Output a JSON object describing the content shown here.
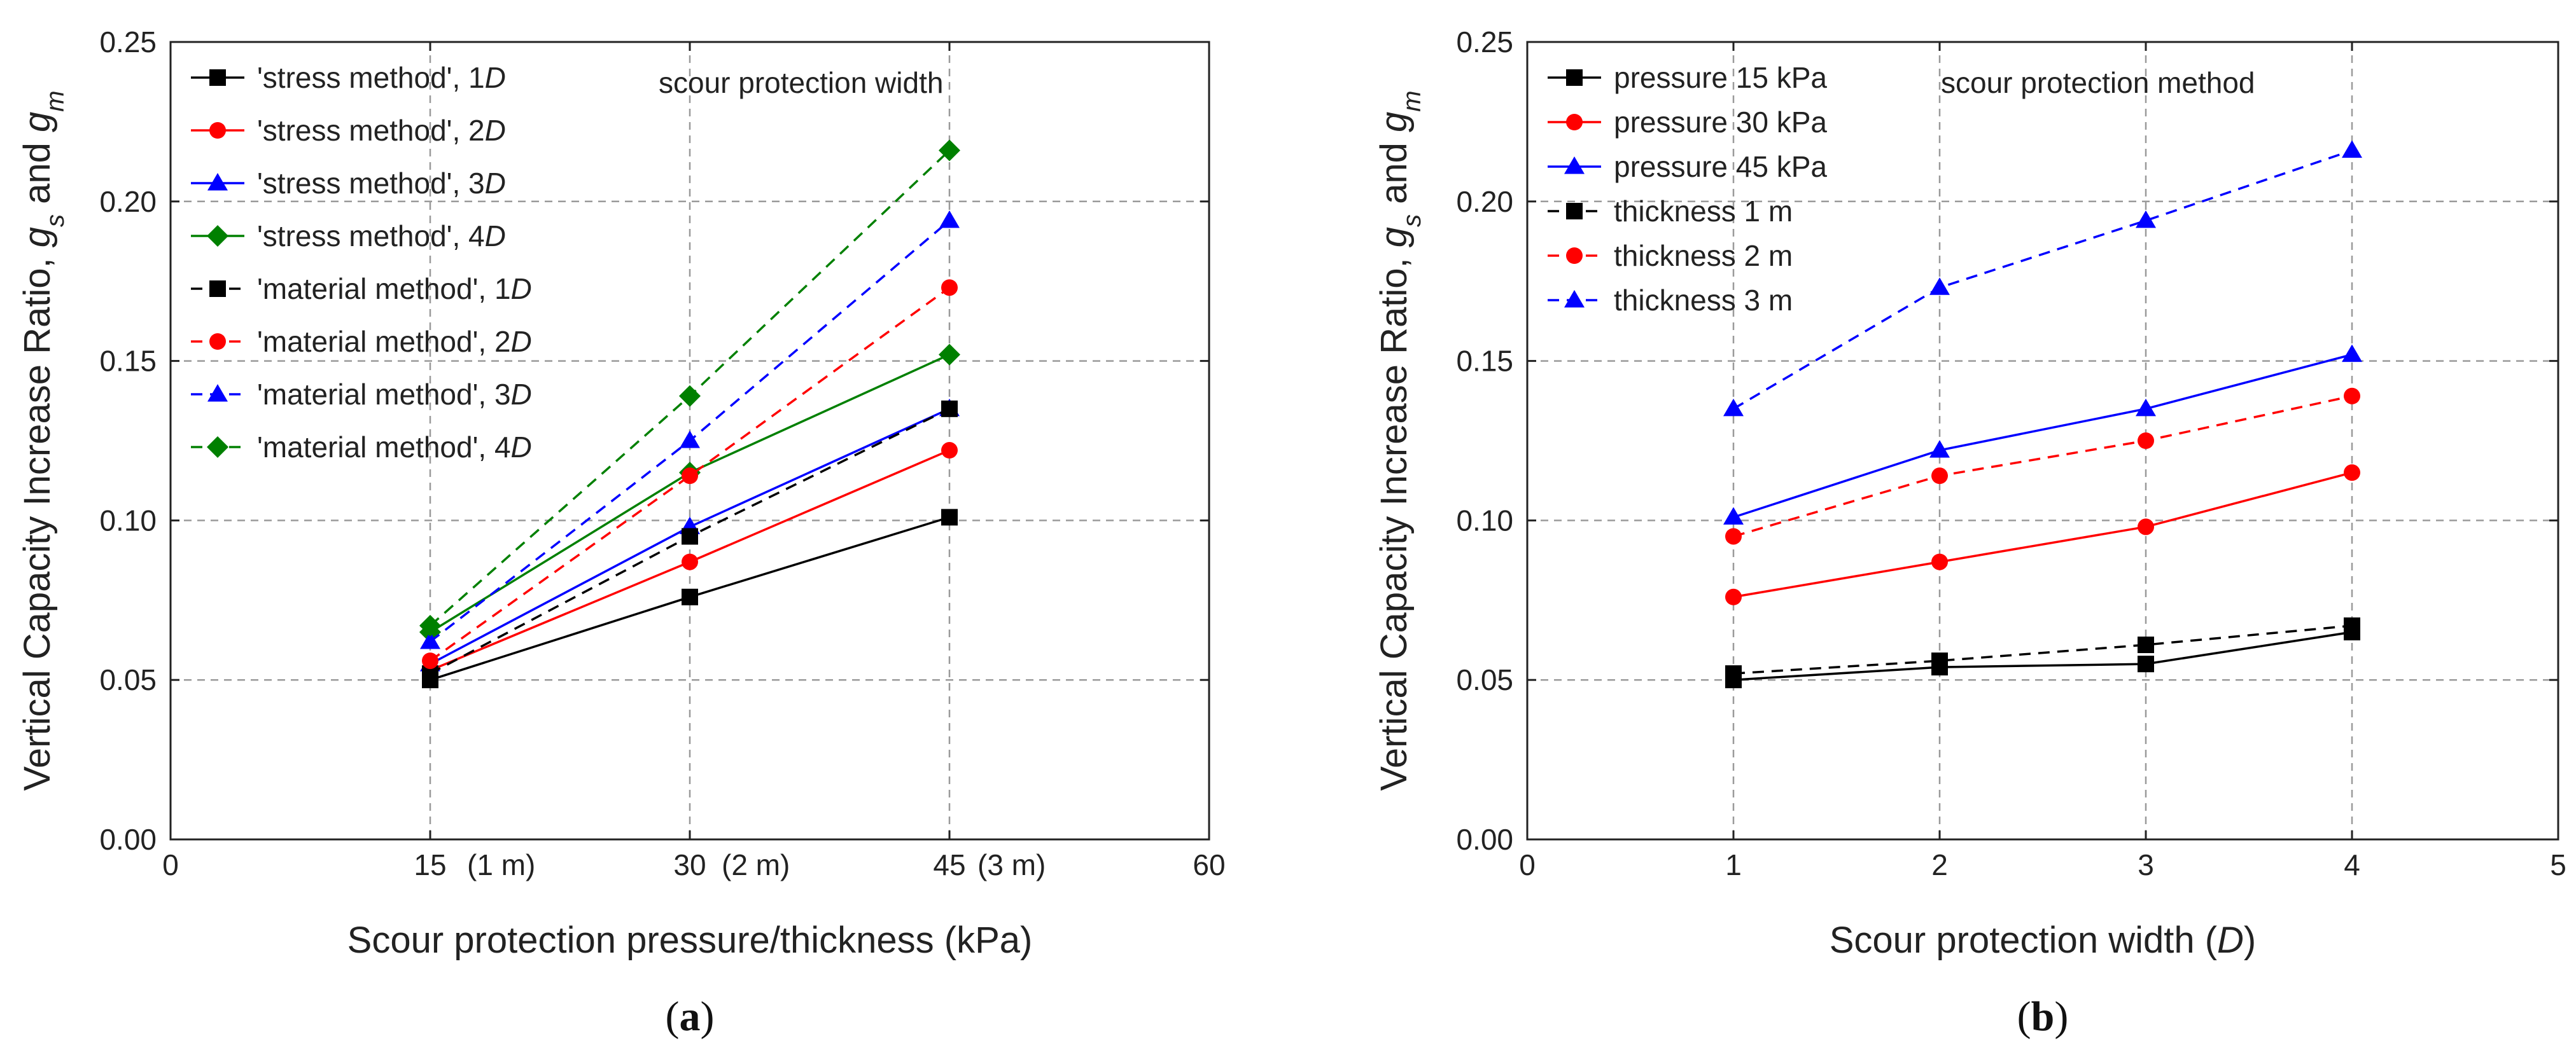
{
  "chart_data": [
    {
      "type": "line",
      "panel_label": "a",
      "xlabel": "Scour protection pressure/thickness (kPa)",
      "ylabel": "Vertical Capacity Increase Ratio, g_s and g_m",
      "xlim": [
        0,
        60
      ],
      "ylim": [
        0,
        0.25
      ],
      "xticks": [
        0,
        15,
        30,
        45,
        60
      ],
      "yticks": [
        0.0,
        0.05,
        0.1,
        0.15,
        0.2,
        0.25
      ],
      "xtick_labels": [
        "0",
        "15",
        "30",
        "45",
        "60"
      ],
      "xtick_extra": [
        "(1 m)",
        "(2 m)",
        "(3 m)"
      ],
      "ytick_labels": [
        "0.00",
        "0.05",
        "0.10",
        "0.15",
        "0.20",
        "0.25"
      ],
      "annotation": "scour protection width",
      "grid": true,
      "legend_position": "top-left",
      "series": [
        {
          "name": "'stress method', 1D",
          "x": [
            15,
            30,
            45
          ],
          "values": [
            0.05,
            0.076,
            0.101
          ],
          "color": "#000000",
          "marker": "square",
          "dashed": false
        },
        {
          "name": "'stress method', 2D",
          "x": [
            15,
            30,
            45
          ],
          "values": [
            0.053,
            0.087,
            0.122
          ],
          "color": "#ff0000",
          "marker": "circle",
          "dashed": false
        },
        {
          "name": "'stress method', 3D",
          "x": [
            15,
            30,
            45
          ],
          "values": [
            0.055,
            0.098,
            0.135
          ],
          "color": "#0000ff",
          "marker": "triangle",
          "dashed": false
        },
        {
          "name": "'stress method', 4D",
          "x": [
            15,
            30,
            45
          ],
          "values": [
            0.065,
            0.115,
            0.152
          ],
          "color": "#008000",
          "marker": "diamond",
          "dashed": false
        },
        {
          "name": "'material method', 1D",
          "x": [
            15,
            30,
            45
          ],
          "values": [
            0.052,
            0.095,
            0.135
          ],
          "color": "#000000",
          "marker": "square",
          "dashed": true
        },
        {
          "name": "'material method', 2D",
          "x": [
            15,
            30,
            45
          ],
          "values": [
            0.056,
            0.114,
            0.173
          ],
          "color": "#ff0000",
          "marker": "circle",
          "dashed": true
        },
        {
          "name": "'material method', 3D",
          "x": [
            15,
            30,
            45
          ],
          "values": [
            0.062,
            0.125,
            0.194
          ],
          "color": "#0000ff",
          "marker": "triangle",
          "dashed": true
        },
        {
          "name": "'material method', 4D",
          "x": [
            15,
            30,
            45
          ],
          "values": [
            0.067,
            0.139,
            0.216
          ],
          "color": "#008000",
          "marker": "diamond",
          "dashed": true
        }
      ]
    },
    {
      "type": "line",
      "panel_label": "b",
      "xlabel": "Scour protection width (D)",
      "ylabel": "Vertical Capacity Increase Ratio, g_s and g_m",
      "xlim": [
        0,
        5
      ],
      "ylim": [
        0,
        0.25
      ],
      "xticks": [
        0,
        1,
        2,
        3,
        4,
        5
      ],
      "yticks": [
        0.0,
        0.05,
        0.1,
        0.15,
        0.2,
        0.25
      ],
      "xtick_labels": [
        "0",
        "1",
        "2",
        "3",
        "4",
        "5"
      ],
      "ytick_labels": [
        "0.00",
        "0.05",
        "0.10",
        "0.15",
        "0.20",
        "0.25"
      ],
      "annotation": "scour protection method",
      "grid": true,
      "legend_position": "top-left",
      "series": [
        {
          "name": "pressure 15 kPa",
          "x": [
            1,
            2,
            3,
            4
          ],
          "values": [
            0.05,
            0.054,
            0.055,
            0.065
          ],
          "color": "#000000",
          "marker": "square",
          "dashed": false
        },
        {
          "name": "pressure 30 kPa",
          "x": [
            1,
            2,
            3,
            4
          ],
          "values": [
            0.076,
            0.087,
            0.098,
            0.115
          ],
          "color": "#ff0000",
          "marker": "circle",
          "dashed": false
        },
        {
          "name": "pressure 45 kPa",
          "x": [
            1,
            2,
            3,
            4
          ],
          "values": [
            0.101,
            0.122,
            0.135,
            0.152
          ],
          "color": "#0000ff",
          "marker": "triangle",
          "dashed": false
        },
        {
          "name": "thickness 1 m",
          "x": [
            1,
            2,
            3,
            4
          ],
          "values": [
            0.052,
            0.056,
            0.061,
            0.067
          ],
          "color": "#000000",
          "marker": "square",
          "dashed": true
        },
        {
          "name": "thickness 2 m",
          "x": [
            1,
            2,
            3,
            4
          ],
          "values": [
            0.095,
            0.114,
            0.125,
            0.139
          ],
          "color": "#ff0000",
          "marker": "circle",
          "dashed": true
        },
        {
          "name": "thickness 3 m",
          "x": [
            1,
            2,
            3,
            4
          ],
          "values": [
            0.135,
            0.173,
            0.194,
            0.216
          ],
          "color": "#0000ff",
          "marker": "triangle",
          "dashed": true
        }
      ]
    }
  ]
}
